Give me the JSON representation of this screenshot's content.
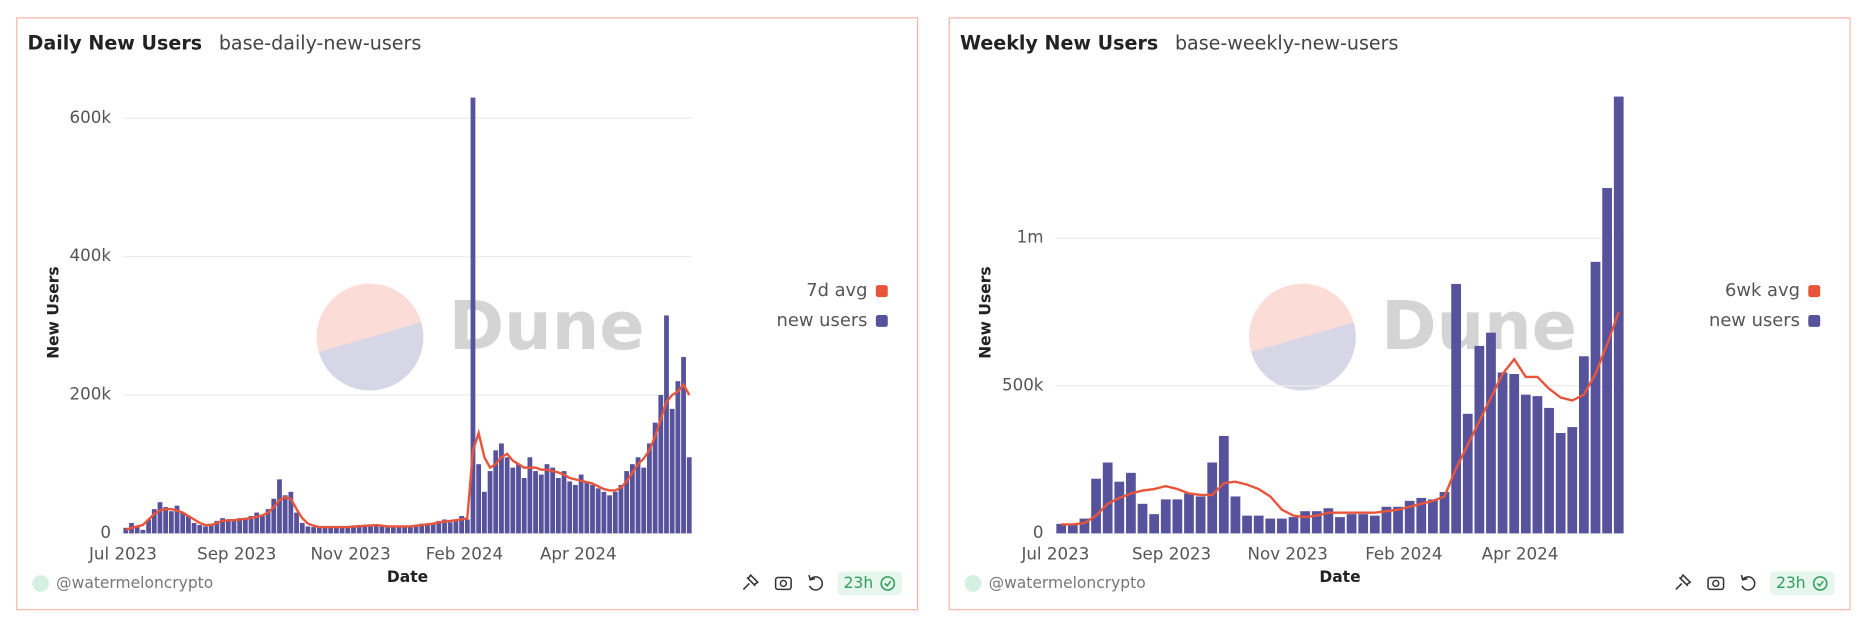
{
  "chart_data": [
    {
      "type": "bar",
      "title": "Daily New Users",
      "subtitle": "base-daily-new-users",
      "y_label": "New Users",
      "x_label": "Date",
      "watermark": "Dune",
      "author": "@watermeloncrypto",
      "refresh": "23h",
      "categories": [
        "Jul 2023",
        null,
        null,
        null,
        null,
        null,
        null,
        null,
        null,
        null,
        null,
        null,
        null,
        null,
        null,
        null,
        null,
        null,
        null,
        null,
        "Sep 2023",
        null,
        null,
        null,
        null,
        null,
        null,
        null,
        null,
        null,
        null,
        null,
        null,
        null,
        null,
        null,
        null,
        null,
        null,
        null,
        "Nov 2023",
        null,
        null,
        null,
        null,
        null,
        null,
        null,
        null,
        null,
        null,
        null,
        null,
        null,
        null,
        null,
        null,
        null,
        null,
        null,
        "Feb 2024",
        null,
        null,
        null,
        null,
        null,
        null,
        null,
        null,
        null,
        null,
        null,
        null,
        null,
        null,
        null,
        null,
        null,
        null,
        null,
        "Apr 2024",
        null,
        null,
        null,
        null,
        null,
        null,
        null,
        null,
        null,
        null,
        null,
        null,
        null,
        null,
        null,
        null,
        null,
        null,
        null
      ],
      "ylim": [
        0,
        640000
      ],
      "yticks": [
        {
          "value": 0,
          "label": "0"
        },
        {
          "value": 200000,
          "label": "200k"
        },
        {
          "value": 400000,
          "label": "400k"
        },
        {
          "value": 600000,
          "label": "600k"
        }
      ],
      "grid": true,
      "legend": "right",
      "series": [
        {
          "name": "7d avg",
          "type": "line",
          "color": "#e8553b",
          "values": [
            5000,
            8000,
            10000,
            12000,
            20000,
            28000,
            33000,
            35000,
            35000,
            33000,
            30000,
            25000,
            20000,
            15000,
            12000,
            12000,
            15000,
            18000,
            19000,
            19000,
            20000,
            21000,
            22000,
            24000,
            26000,
            30000,
            38000,
            48000,
            52000,
            50000,
            35000,
            22000,
            14000,
            11000,
            9000,
            9000,
            9000,
            9000,
            9000,
            9000,
            10000,
            10000,
            11000,
            11000,
            12000,
            11000,
            10000,
            10000,
            10000,
            10000,
            10000,
            11000,
            12000,
            13000,
            14000,
            16000,
            17000,
            18000,
            19000,
            20000,
            22000,
            120000,
            145000,
            110000,
            95000,
            100000,
            110000,
            115000,
            105000,
            100000,
            95000,
            95000,
            95000,
            92000,
            92000,
            90000,
            88000,
            85000,
            80000,
            78000,
            76000,
            74000,
            72000,
            68000,
            64000,
            62000,
            62000,
            66000,
            75000,
            88000,
            100000,
            108000,
            120000,
            140000,
            165000,
            190000,
            200000,
            205000,
            215000,
            200000
          ]
        },
        {
          "name": "new users",
          "type": "bar",
          "color": "#57529c",
          "values": [
            8000,
            15000,
            10000,
            5000,
            20000,
            35000,
            45000,
            38000,
            32000,
            40000,
            30000,
            25000,
            15000,
            12000,
            10000,
            14000,
            18000,
            22000,
            20000,
            18000,
            22000,
            20000,
            25000,
            30000,
            25000,
            35000,
            50000,
            78000,
            55000,
            60000,
            30000,
            15000,
            10000,
            9000,
            8000,
            10000,
            9000,
            8000,
            10000,
            9000,
            10000,
            12000,
            11000,
            13000,
            12000,
            10000,
            9000,
            10000,
            11000,
            9000,
            10000,
            12000,
            14000,
            13000,
            15000,
            18000,
            20000,
            16000,
            18000,
            25000,
            20000,
            630000,
            100000,
            60000,
            90000,
            120000,
            130000,
            110000,
            95000,
            100000,
            80000,
            110000,
            90000,
            85000,
            100000,
            95000,
            80000,
            90000,
            75000,
            70000,
            85000,
            75000,
            70000,
            65000,
            60000,
            55000,
            60000,
            70000,
            90000,
            100000,
            110000,
            95000,
            130000,
            160000,
            200000,
            315000,
            180000,
            220000,
            255000,
            110000
          ]
        }
      ]
    },
    {
      "type": "bar",
      "title": "Weekly New Users",
      "subtitle": "base-weekly-new-users",
      "y_label": "New Users",
      "x_label": "Date",
      "watermark": "Dune",
      "author": "@watermeloncrypto",
      "refresh": "23h",
      "categories": [
        "Jul 2023",
        null,
        null,
        null,
        null,
        null,
        null,
        null,
        null,
        null,
        "Sep 2023",
        null,
        null,
        null,
        null,
        null,
        null,
        null,
        null,
        null,
        "Nov 2023",
        null,
        null,
        null,
        null,
        null,
        null,
        null,
        null,
        null,
        "Feb 2024",
        null,
        null,
        null,
        null,
        null,
        null,
        null,
        null,
        null,
        "Apr 2024",
        null,
        null,
        null,
        null,
        null,
        null,
        null,
        null
      ],
      "ylim": [
        0,
        1500000
      ],
      "yticks": [
        {
          "value": 0,
          "label": "0"
        },
        {
          "value": 500000,
          "label": "500k"
        },
        {
          "value": 1000000,
          "label": "1m"
        }
      ],
      "grid": true,
      "legend": "right",
      "series": [
        {
          "name": "6wk avg",
          "type": "line",
          "color": "#e8553b",
          "values": [
            30000,
            30000,
            35000,
            60000,
            100000,
            120000,
            135000,
            145000,
            150000,
            160000,
            150000,
            135000,
            130000,
            130000,
            170000,
            175000,
            165000,
            150000,
            125000,
            80000,
            60000,
            55000,
            60000,
            70000,
            70000,
            70000,
            70000,
            70000,
            75000,
            80000,
            90000,
            100000,
            110000,
            125000,
            220000,
            300000,
            380000,
            460000,
            540000,
            590000,
            530000,
            530000,
            490000,
            460000,
            450000,
            470000,
            540000,
            640000,
            750000
          ]
        },
        {
          "name": "new users",
          "type": "bar",
          "color": "#57529c",
          "values": [
            32000,
            32000,
            50000,
            185000,
            240000,
            175000,
            205000,
            100000,
            65000,
            115000,
            115000,
            135000,
            125000,
            240000,
            330000,
            125000,
            60000,
            60000,
            50000,
            50000,
            55000,
            75000,
            75000,
            85000,
            55000,
            65000,
            65000,
            60000,
            90000,
            90000,
            110000,
            120000,
            115000,
            140000,
            845000,
            405000,
            635000,
            680000,
            545000,
            540000,
            470000,
            465000,
            425000,
            340000,
            360000,
            600000,
            920000,
            1170000,
            1480000
          ]
        }
      ]
    }
  ]
}
